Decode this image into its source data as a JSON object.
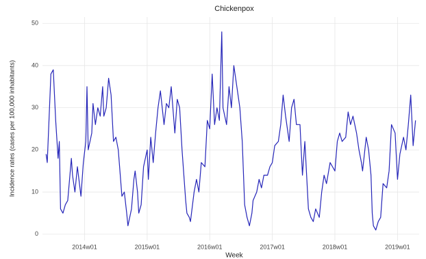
{
  "chart_data": {
    "type": "line",
    "title": "Chickenpox",
    "x_label": "Week",
    "y_label": "Incidence rates (cases per 100,000 inhabitants)",
    "x": [
      "2013w21",
      "2013w22",
      "2013w25",
      "2013w27",
      "2013w29",
      "2013w31",
      "2013w32",
      "2013w33",
      "2013w35",
      "2013w37",
      "2013w39",
      "2013w42",
      "2013w43",
      "2013w45",
      "2013w47",
      "2013w50",
      "2013w52",
      "2014w02",
      "2014w03",
      "2014w04",
      "2014w07",
      "2014w08",
      "2014w10",
      "2014w12",
      "2014w14",
      "2014w16",
      "2014w17",
      "2014w19",
      "2014w21",
      "2014w23",
      "2014w25",
      "2014w27",
      "2014w29",
      "2014w32",
      "2014w34",
      "2014w36",
      "2014w37",
      "2014w40",
      "2014w42",
      "2014w43",
      "2014w45",
      "2014w46",
      "2014w48",
      "2014w50",
      "2015w01",
      "2015w02",
      "2015w04",
      "2015w06",
      "2015w08",
      "2015w10",
      "2015w12",
      "2015w15",
      "2015w17",
      "2015w19",
      "2015w21",
      "2015w24",
      "2015w26",
      "2015w28",
      "2015w30",
      "2015w33",
      "2015w34",
      "2015w36",
      "2015w37",
      "2015w40",
      "2015w42",
      "2015w44",
      "2015w46",
      "2015w49",
      "2015w51",
      "2016w01",
      "2016w03",
      "2016w05",
      "2016w07",
      "2016w09",
      "2016w11",
      "2016w12",
      "2016w15",
      "2016w17",
      "2016w19",
      "2016w21",
      "2016w24",
      "2016w26",
      "2016w28",
      "2016w30",
      "2016w32",
      "2016w34",
      "2016w36",
      "2016w37",
      "2016w40",
      "2016w42",
      "2016w44",
      "2016w46",
      "2016w49",
      "2016w51",
      "2017w01",
      "2017w03",
      "2017w06",
      "2017w08",
      "2017w10",
      "2017w12",
      "2017w15",
      "2017w17",
      "2017w19",
      "2017w21",
      "2017w24",
      "2017w26",
      "2017w28",
      "2017w31",
      "2017w33",
      "2017w35",
      "2017w37",
      "2017w40",
      "2017w42",
      "2017w44",
      "2017w46",
      "2017w49",
      "2017w51",
      "2018w01",
      "2018w03",
      "2018w05",
      "2018w07",
      "2018w10",
      "2018w12",
      "2018w14",
      "2018w16",
      "2018w19",
      "2018w21",
      "2018w23",
      "2018w24",
      "2018w27",
      "2018w29",
      "2018w31",
      "2018w32",
      "2018w33",
      "2018w35",
      "2018w37",
      "2018w39",
      "2018w41",
      "2018w44",
      "2018w46",
      "2018w48",
      "2018w51",
      "2019w01",
      "2019w03",
      "2019w06",
      "2019w08",
      "2019w10",
      "2019w12",
      "2019w14",
      "2019w16"
    ],
    "series": [
      {
        "name": "Chickenpox",
        "color": "#2424b8",
        "values": [
          19,
          17,
          38,
          39,
          27,
          18,
          22,
          6,
          5,
          7,
          8,
          18,
          14,
          10,
          16,
          9,
          17,
          22,
          35,
          20,
          24,
          31,
          26,
          30,
          28,
          35,
          28,
          30,
          37,
          33,
          22,
          23,
          20,
          9,
          10,
          5,
          2,
          6,
          13,
          15,
          10,
          5,
          7,
          16,
          20,
          13,
          23,
          17,
          24,
          30,
          34,
          26,
          31,
          30,
          35,
          24,
          32,
          30,
          20,
          8,
          5,
          4,
          3,
          10,
          13,
          10,
          17,
          16,
          27,
          25,
          38,
          26,
          30,
          27,
          48,
          30,
          26,
          35,
          30,
          40,
          34,
          30,
          22,
          7,
          4,
          2,
          5,
          8,
          10,
          13,
          11,
          14,
          14,
          16,
          17,
          21,
          22,
          26,
          33,
          28,
          22,
          30,
          32,
          26,
          26,
          14,
          22,
          6,
          4,
          3,
          6,
          4,
          10,
          14,
          12,
          17,
          16,
          15,
          22,
          24,
          22,
          23,
          29,
          26,
          28,
          24,
          20,
          17,
          15,
          23,
          20,
          14,
          5,
          2,
          1,
          3,
          4,
          12,
          11,
          15,
          26,
          24,
          13,
          19,
          23,
          20,
          26,
          33,
          21,
          27
        ]
      }
    ],
    "xlim": [
      "2013w18",
      "2019w19"
    ],
    "xticks": [
      "2014w01",
      "2015w01",
      "2016w01",
      "2017w01",
      "2018w01",
      "2019w01"
    ],
    "ylim": [
      -1.5,
      51.5
    ],
    "yticks": [
      0,
      10,
      20,
      30,
      40,
      50
    ],
    "grid": true
  }
}
